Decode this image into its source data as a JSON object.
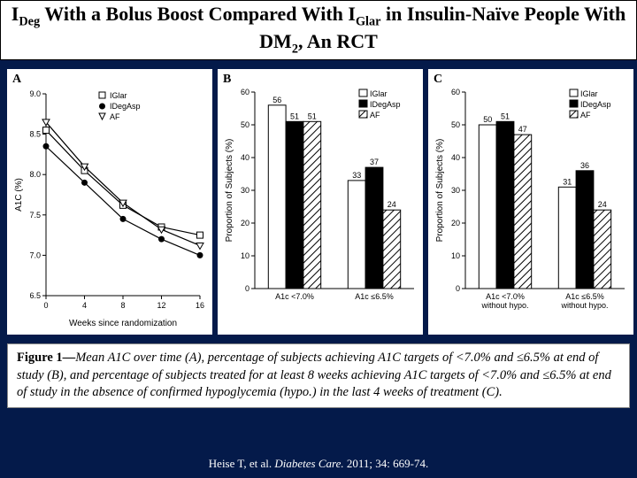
{
  "title_html": "I<sub>Deg</sub> With a Bolus Boost Compared With I<sub>Glar</sub> in Insulin-Naïve People With DM<sub>2</sub>, An RCT",
  "panelA": {
    "label": "A",
    "xlabel": "Weeks since randomization",
    "ylabel": "A1C (%)",
    "xlim": [
      0,
      16
    ],
    "xticks": [
      0,
      4,
      8,
      12,
      16
    ],
    "ylim": [
      6.5,
      9.0
    ],
    "yticks": [
      6.5,
      7.0,
      7.5,
      8.0,
      8.5,
      9.0
    ],
    "legend": [
      {
        "name": "IGlar",
        "marker": "open-square"
      },
      {
        "name": "IDegAsp",
        "marker": "filled-circle"
      },
      {
        "name": "AF",
        "marker": "open-tri-down"
      }
    ],
    "series": {
      "IGlar": {
        "x": [
          0,
          4,
          8,
          12,
          16
        ],
        "y": [
          8.55,
          8.05,
          7.62,
          7.35,
          7.25
        ]
      },
      "IDegAsp": {
        "x": [
          0,
          4,
          8,
          12,
          16
        ],
        "y": [
          8.35,
          7.9,
          7.45,
          7.2,
          7.0
        ]
      },
      "AF": {
        "x": [
          0,
          4,
          8,
          12,
          16
        ],
        "y": [
          8.65,
          8.1,
          7.65,
          7.32,
          7.12
        ]
      }
    },
    "colors": {
      "line": "#000000",
      "bg": "#ffffff"
    }
  },
  "panelB": {
    "label": "B",
    "ylabel": "Proportion of Subjects (%)",
    "ylim": [
      0,
      60
    ],
    "yticks": [
      0,
      10,
      20,
      30,
      40,
      50,
      60
    ],
    "groups": [
      "A1c <7.0%",
      "A1c ≤6.5%"
    ],
    "legend": [
      {
        "name": "IGlar",
        "fill": "open"
      },
      {
        "name": "IDegAsp",
        "fill": "solid"
      },
      {
        "name": "AF",
        "fill": "hatch"
      }
    ],
    "data": {
      "A1c <7.0%": {
        "IGlar": 56,
        "IDegAsp": 51,
        "AF": 51
      },
      "A1c ≤6.5%": {
        "IGlar": 33,
        "IDegAsp": 37,
        "AF": 24
      }
    },
    "colors": {
      "bar_stroke": "#000",
      "bg": "#fff"
    }
  },
  "panelC": {
    "label": "C",
    "ylabel": "Proportion of Subjects (%)",
    "ylim": [
      0,
      60
    ],
    "yticks": [
      0,
      10,
      20,
      30,
      40,
      50,
      60
    ],
    "groups": [
      "A1c <7.0% without hypo.",
      "A1c ≤6.5% without hypo."
    ],
    "legend": [
      {
        "name": "IGlar",
        "fill": "open"
      },
      {
        "name": "IDegAsp",
        "fill": "solid"
      },
      {
        "name": "AF",
        "fill": "hatch"
      }
    ],
    "data": {
      "A1c <7.0% without hypo.": {
        "IGlar": 50,
        "IDegAsp": 51,
        "AF": 47
      },
      "A1c ≤6.5% without hypo.": {
        "IGlar": 31,
        "IDegAsp": 36,
        "AF": 24
      }
    },
    "colors": {
      "bar_stroke": "#000",
      "bg": "#fff"
    }
  },
  "caption_html": "<b>Figure 1—</b>Mean A1C over time (A), percentage of subjects achieving A1C targets of &lt;7.0% and ≤6.5% at end of study (B), and percentage of subjects treated for at least 8 weeks achieving A1C targets of &lt;7.0% and ≤6.5% at end of study in the absence of confirmed hypoglycemia (hypo.) in the last 4 weeks of treatment (C).",
  "citation_html": "Heise T, et al. <em>Diabetes Care.</em> 2011; 34: 669-74.",
  "style": {
    "slide_bg": "#041a4a",
    "title_fontsize": 22,
    "caption_fontsize": 14.5
  }
}
